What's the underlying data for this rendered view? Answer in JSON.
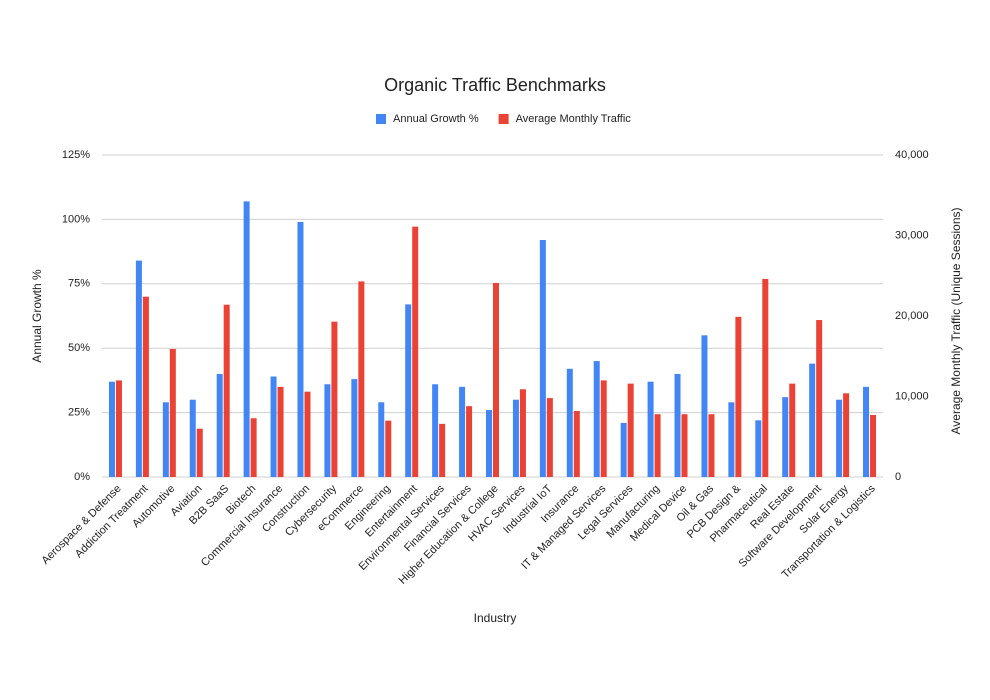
{
  "chart_data": {
    "type": "bar",
    "title": "Organic Traffic Benchmarks",
    "x_label": "Industry",
    "y_label": "Annual Growth %",
    "y2_label": "Average Monthly Traffic (Unique Sessions)",
    "categories": [
      "Aerospace & Defense",
      "Addiction Treatment",
      "Automotive",
      "Aviation",
      "B2B SaaS",
      "Biotech",
      "Commercial Insurance",
      "Construction",
      "Cybersecurity",
      "eCommerce",
      "Engineering",
      "Entertainment",
      "Environmental Services",
      "Financial Services",
      "Higher Education & College",
      "HVAC Services",
      "Industrial IoT",
      "Insurance",
      "IT & Managed Services",
      "Legal Services",
      "Manufacturing",
      "Medical Device",
      "Oil & Gas",
      "PCB Design &",
      "Pharmaceutical",
      "Real Estate",
      "Software Development",
      "Solar Energy",
      "Transportation & Logistics"
    ],
    "series": [
      {
        "name": "Annual Growth %",
        "color": "#4285f4",
        "values": [
          37,
          84,
          29,
          30,
          40,
          107,
          39,
          99,
          36,
          38,
          29,
          67,
          36,
          35,
          26,
          30,
          92,
          42,
          45,
          21,
          37,
          40,
          55,
          29,
          22,
          31,
          44,
          30,
          35
        ]
      },
      {
        "name": "Average Monthly Traffic",
        "color": "#ea4335",
        "axis": "y2",
        "values": [
          12000,
          22400,
          15900,
          6000,
          21400,
          7300,
          11200,
          10600,
          19300,
          24300,
          7000,
          31100,
          6600,
          8800,
          24100,
          10900,
          9800,
          8200,
          12000,
          11600,
          7800,
          7800,
          7800,
          19900,
          24600,
          11600,
          19500,
          10400,
          7700
        ]
      }
    ],
    "ylim": [
      0,
      125
    ],
    "yticks": [
      {
        "value": 0,
        "label": "0%"
      },
      {
        "value": 25,
        "label": "25%"
      },
      {
        "value": 50,
        "label": "50%"
      },
      {
        "value": 75,
        "label": "75%"
      },
      {
        "value": 100,
        "label": "100%"
      },
      {
        "value": 125,
        "label": "125%"
      }
    ],
    "y2lim": [
      0,
      40000
    ],
    "y2ticks": [
      0,
      {
        "value": 10000,
        "label": "10,000"
      },
      {
        "value": 20000,
        "label": "20,000"
      },
      {
        "value": 30000,
        "label": "30,000"
      },
      {
        "value": 40000,
        "label": "40,000"
      }
    ],
    "grid": true,
    "legend": "top"
  }
}
